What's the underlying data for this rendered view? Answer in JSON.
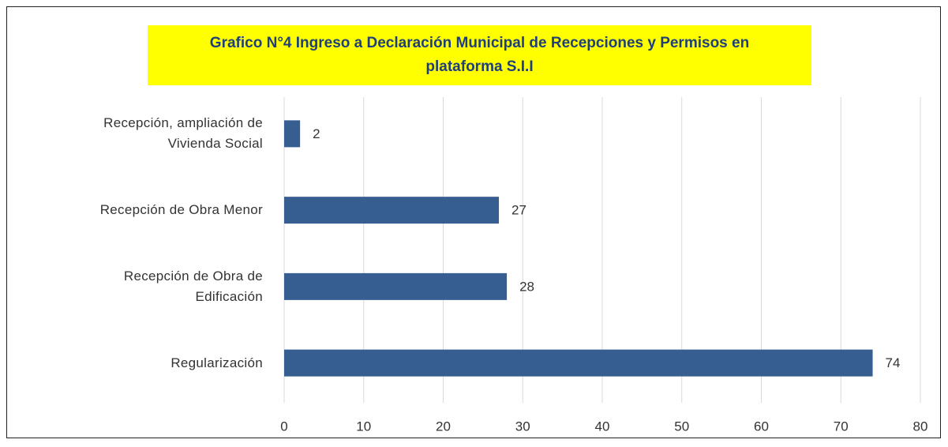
{
  "chart_data": {
    "type": "bar",
    "orientation": "horizontal",
    "title": "Grafico N°4 Ingreso a Declaración  Municipal  de Recepciones y Permisos en\nplataforma S.I.I",
    "categories": [
      "Recepción, ampliación de\nVivienda Social",
      "Recepción de Obra Menor",
      "Recepción de Obra de\nEdificación",
      "Regularización"
    ],
    "values": [
      2,
      27,
      28,
      74
    ],
    "color": "#375e91",
    "xlim": [
      0,
      80
    ],
    "xticks": [
      0,
      10,
      20,
      30,
      40,
      50,
      60,
      70,
      80
    ],
    "grid": true
  }
}
